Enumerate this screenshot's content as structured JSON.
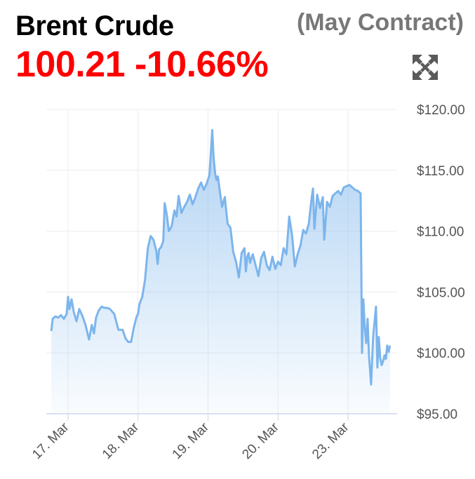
{
  "header": {
    "title": "Brent Crude",
    "contract": "(May Contract)",
    "price": "100.21",
    "change": "-10.66%",
    "change_color": "#ff0000"
  },
  "toolbar": {
    "expand_icon": "expand-arrows-icon"
  },
  "chart_data": {
    "type": "area",
    "title": "",
    "xlabel": "",
    "ylabel": "",
    "ylim": [
      95,
      120
    ],
    "grid": true,
    "line_color": "#7cb5ec",
    "y_ticks": [
      {
        "value": 120,
        "label": "$120.00"
      },
      {
        "value": 115,
        "label": "$115.00"
      },
      {
        "value": 110,
        "label": "$110.00"
      },
      {
        "value": 105,
        "label": "$105.00"
      },
      {
        "value": 100,
        "label": "$100.00"
      },
      {
        "value": 95,
        "label": "$95.00"
      }
    ],
    "x_ticks": [
      {
        "value": 0,
        "label": "17. Mar"
      },
      {
        "value": 1,
        "label": "18. Mar"
      },
      {
        "value": 2,
        "label": "19. Mar"
      },
      {
        "value": 3,
        "label": "20. Mar"
      },
      {
        "value": 4,
        "label": "23. Mar"
      }
    ],
    "series": [
      {
        "x": [
          -0.24,
          -0.22,
          -0.18,
          -0.14,
          -0.1,
          -0.06,
          -0.02,
          0.0,
          0.02,
          0.05,
          0.08,
          0.12,
          0.16,
          0.2,
          0.25,
          0.3,
          0.34,
          0.37,
          0.4,
          0.44,
          0.48,
          0.52,
          0.56,
          0.6,
          0.66,
          0.72,
          0.78,
          0.82,
          0.86,
          0.9,
          0.94,
          0.98,
          1.0,
          1.02,
          1.06,
          1.1,
          1.14,
          1.18,
          1.22,
          1.26,
          1.28,
          1.3,
          1.33,
          1.36,
          1.38,
          1.41,
          1.44,
          1.48,
          1.52,
          1.55,
          1.58,
          1.62,
          1.66,
          1.7,
          1.74,
          1.78,
          1.82,
          1.86,
          1.9,
          1.94,
          1.98,
          2.02,
          2.06,
          2.08,
          2.1,
          2.12,
          2.14,
          2.17,
          2.2,
          2.24,
          2.28,
          2.32,
          2.36,
          2.4,
          2.44,
          2.48,
          2.52,
          2.54,
          2.56,
          2.58,
          2.6,
          2.64,
          2.68,
          2.72,
          2.76,
          2.8,
          2.84,
          2.88,
          2.92,
          2.96,
          3.0,
          3.04,
          3.08,
          3.12,
          3.16,
          3.2,
          3.24,
          3.28,
          3.32,
          3.36,
          3.4,
          3.44,
          3.48,
          3.5,
          3.52,
          3.56,
          3.6,
          3.64,
          3.66,
          3.7,
          3.74,
          3.78,
          3.82,
          3.86,
          3.9,
          3.94,
          3.98,
          4.02,
          4.06,
          4.1,
          4.14,
          4.18,
          4.2,
          4.22,
          4.24,
          4.26,
          4.28,
          4.3,
          4.33,
          4.36,
          4.4,
          4.42,
          4.44,
          4.46,
          4.48,
          4.5,
          4.52,
          4.54,
          4.56,
          4.58,
          4.6
        ],
        "values": [
          101.8,
          102.8,
          103.0,
          102.9,
          103.1,
          102.8,
          103.2,
          104.6,
          103.6,
          104.4,
          103.4,
          102.6,
          103.6,
          103.1,
          102.3,
          101.1,
          102.3,
          101.6,
          102.9,
          103.5,
          103.8,
          103.7,
          103.7,
          103.6,
          103.2,
          101.9,
          101.9,
          101.2,
          100.9,
          100.9,
          102.1,
          103.0,
          103.2,
          104.0,
          104.6,
          106.0,
          108.6,
          109.6,
          109.3,
          108.4,
          107.3,
          108.5,
          108.7,
          109.2,
          112.3,
          111.4,
          110.0,
          110.4,
          111.7,
          111.2,
          112.9,
          111.5,
          112.0,
          112.4,
          113.0,
          112.2,
          112.8,
          113.5,
          114.0,
          113.4,
          113.9,
          114.6,
          118.3,
          116.0,
          114.8,
          114.2,
          114.5,
          113.2,
          112.0,
          112.8,
          110.6,
          110.3,
          108.3,
          107.5,
          106.2,
          108.2,
          108.6,
          106.7,
          107.9,
          108.2,
          107.4,
          108.1,
          107.2,
          106.3,
          107.8,
          108.3,
          107.2,
          106.8,
          107.9,
          106.9,
          107.5,
          107.2,
          108.6,
          108.1,
          111.2,
          109.7,
          107.1,
          108.1,
          108.8,
          110.1,
          109.8,
          110.6,
          112.7,
          113.5,
          110.2,
          113.0,
          111.9,
          112.8,
          109.3,
          112.4,
          112.0,
          112.9,
          113.1,
          113.3,
          113.0,
          113.6,
          113.7,
          113.8,
          113.6,
          113.4,
          113.3,
          113.1,
          100.0,
          104.4,
          102.1,
          100.8,
          102.8,
          99.8,
          97.4,
          101.4,
          103.8,
          98.8,
          101.3,
          99.6,
          99.0,
          99.3,
          99.8,
          99.5,
          100.6,
          100.1,
          100.6
        ]
      }
    ]
  }
}
